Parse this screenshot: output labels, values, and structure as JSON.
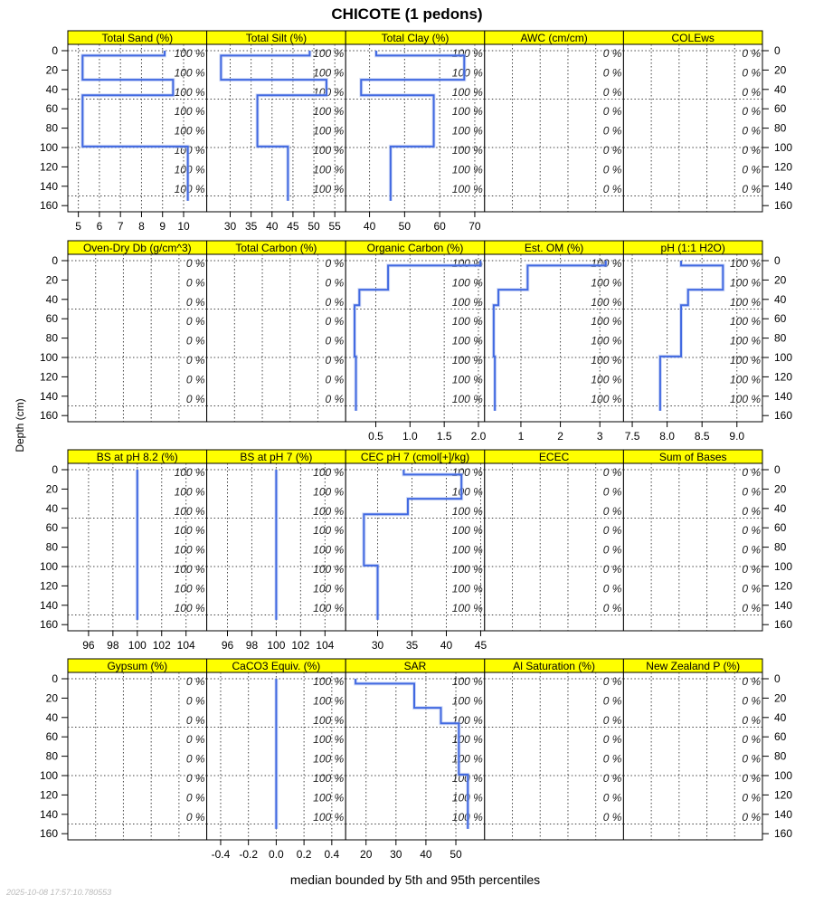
{
  "title": "CHICOTE (1 pedons)",
  "ylabel": "Depth (cm)",
  "xlabel": "median bounded by 5th and 95th percentiles",
  "timestamp": "2025-10-08 17:57:10.780553",
  "line_color": "#4169E1",
  "strip_color": "#FFFF00",
  "chart_data": {
    "type": "line",
    "ylim": [
      160,
      0
    ],
    "yticks": [
      0,
      20,
      40,
      60,
      80,
      100,
      120,
      140,
      160
    ],
    "ygrid": [
      0,
      50,
      100,
      150
    ],
    "pct_depths": [
      0,
      20,
      40,
      60,
      80,
      100,
      120,
      140
    ],
    "horizons": [
      [
        0,
        5
      ],
      [
        5,
        30
      ],
      [
        30,
        46
      ],
      [
        46,
        99
      ],
      [
        99,
        155
      ]
    ],
    "panels": [
      {
        "title": "Total Sand (%)",
        "xlim": [
          4.5,
          11.1
        ],
        "ticks": [
          5,
          6,
          7,
          8,
          9,
          10
        ],
        "tick_labels": [
          "5",
          "6",
          "7",
          "8",
          "9",
          "10"
        ],
        "show_axis": true,
        "pct": "100 %",
        "values": [
          9.1,
          5.2,
          9.5,
          5.2,
          10.2
        ]
      },
      {
        "title": "Total Silt (%)",
        "xlim": [
          24.4,
          57.6
        ],
        "ticks": [
          30,
          35,
          40,
          45,
          50,
          55
        ],
        "tick_labels": [
          "30",
          "35",
          "40",
          "45",
          "50",
          "55"
        ],
        "show_axis": true,
        "pct": "100 %",
        "values": [
          49.0,
          27.8,
          53.0,
          36.5,
          43.8
        ]
      },
      {
        "title": "Total Clay (%)",
        "xlim": [
          33.2,
          72.8
        ],
        "ticks": [
          40,
          50,
          60,
          70
        ],
        "tick_labels": [
          "40",
          "50",
          "60",
          "70"
        ],
        "show_axis": true,
        "pct": "100 %",
        "values": [
          41.9,
          67.0,
          37.6,
          58.3,
          46.0
        ]
      },
      {
        "title": "AWC (cm/cm)",
        "xlim": null,
        "ticks": [],
        "tick_labels": [],
        "show_axis": false,
        "pct": "0 %",
        "values": null
      },
      {
        "title": "COLEws",
        "xlim": null,
        "ticks": [],
        "tick_labels": [],
        "show_axis": false,
        "pct": "0 %",
        "values": null
      },
      {
        "title": "Oven-Dry Db (g/cm^3)",
        "xlim": null,
        "ticks": [],
        "tick_labels": [],
        "show_axis": false,
        "pct": "0 %",
        "values": null
      },
      {
        "title": "Total Carbon (%)",
        "xlim": null,
        "ticks": [],
        "tick_labels": [],
        "show_axis": false,
        "pct": "0 %",
        "values": null
      },
      {
        "title": "Organic Carbon (%)",
        "xlim": [
          0.06,
          2.09
        ],
        "ticks": [
          0.5,
          1.0,
          1.5,
          2.0
        ],
        "tick_labels": [
          "0.5",
          "1.0",
          "1.5",
          "2.0"
        ],
        "show_axis": true,
        "pct": "100 %",
        "values": [
          2.03,
          0.68,
          0.26,
          0.19,
          0.21
        ]
      },
      {
        "title": "Est. OM (%)",
        "xlim": [
          0.08,
          3.6
        ],
        "ticks": [
          1,
          2,
          3
        ],
        "tick_labels": [
          "1",
          "2",
          "3"
        ],
        "show_axis": true,
        "pct": "100 %",
        "values": [
          3.15,
          1.17,
          0.43,
          0.31,
          0.34
        ]
      },
      {
        "title": "pH (1:1 H2O)",
        "xlim": [
          7.375,
          9.366
        ],
        "ticks": [
          7.5,
          8.0,
          8.5,
          9.0
        ],
        "tick_labels": [
          "7.5",
          "8.0",
          "8.5",
          "9.0"
        ],
        "show_axis": true,
        "pct": "100 %",
        "values": [
          8.2,
          8.8,
          8.3,
          8.2,
          7.9
        ]
      },
      {
        "title": "BS at pH 8.2 (%)",
        "xlim": [
          94.3,
          105.7
        ],
        "ticks": [
          96,
          98,
          100,
          102,
          104
        ],
        "tick_labels": [
          "96",
          "98",
          "100",
          "102",
          "104"
        ],
        "show_axis": true,
        "pct": "100 %",
        "values": [
          100,
          100,
          100,
          100,
          100
        ]
      },
      {
        "title": "BS at pH 7 (%)",
        "xlim": [
          94.3,
          105.7
        ],
        "ticks": [
          96,
          98,
          100,
          102,
          104
        ],
        "tick_labels": [
          "96",
          "98",
          "100",
          "102",
          "104"
        ],
        "show_axis": true,
        "pct": "100 %",
        "values": [
          100,
          100,
          100,
          100,
          100
        ]
      },
      {
        "title": "CEC pH 7 (cmol[+]/kg)",
        "xlim": [
          25.35,
          45.57
        ],
        "ticks": [
          30,
          35,
          40,
          45
        ],
        "tick_labels": [
          "30",
          "35",
          "40",
          "45"
        ],
        "show_axis": true,
        "pct": "100 %",
        "values": [
          33.8,
          42.2,
          34.4,
          28.0,
          30.0
        ]
      },
      {
        "title": "ECEC",
        "xlim": null,
        "ticks": [],
        "tick_labels": [],
        "show_axis": false,
        "pct": "0 %",
        "values": null
      },
      {
        "title": "Sum of Bases",
        "xlim": null,
        "ticks": [],
        "tick_labels": [],
        "show_axis": false,
        "pct": "0 %",
        "values": null
      },
      {
        "title": "Gypsum (%)",
        "xlim": null,
        "ticks": [],
        "tick_labels": [],
        "show_axis": false,
        "pct": "0 %",
        "values": null
      },
      {
        "title": "CaCO3 Equiv. (%)",
        "xlim": [
          -0.5,
          0.5
        ],
        "ticks": [
          -0.4,
          -0.2,
          0.0,
          0.2,
          0.4
        ],
        "tick_labels": [
          "-0.4",
          "-0.2",
          "0.0",
          "0.2",
          "0.4"
        ],
        "show_axis": true,
        "pct": "100 %",
        "values": [
          0,
          0,
          0,
          0,
          0
        ]
      },
      {
        "title": "SAR",
        "xlim": [
          13.2,
          59.6
        ],
        "ticks": [
          20,
          30,
          40,
          50
        ],
        "tick_labels": [
          "20",
          "30",
          "40",
          "50"
        ],
        "show_axis": true,
        "pct": "100 %",
        "values": [
          16.5,
          36.1,
          45.0,
          51.0,
          54.0
        ]
      },
      {
        "title": "Al Saturation (%)",
        "xlim": null,
        "ticks": [],
        "tick_labels": [],
        "show_axis": false,
        "pct": "0 %",
        "values": null
      },
      {
        "title": "New Zealand P (%)",
        "xlim": null,
        "ticks": [],
        "tick_labels": [],
        "show_axis": false,
        "pct": "0 %",
        "values": null
      }
    ]
  }
}
